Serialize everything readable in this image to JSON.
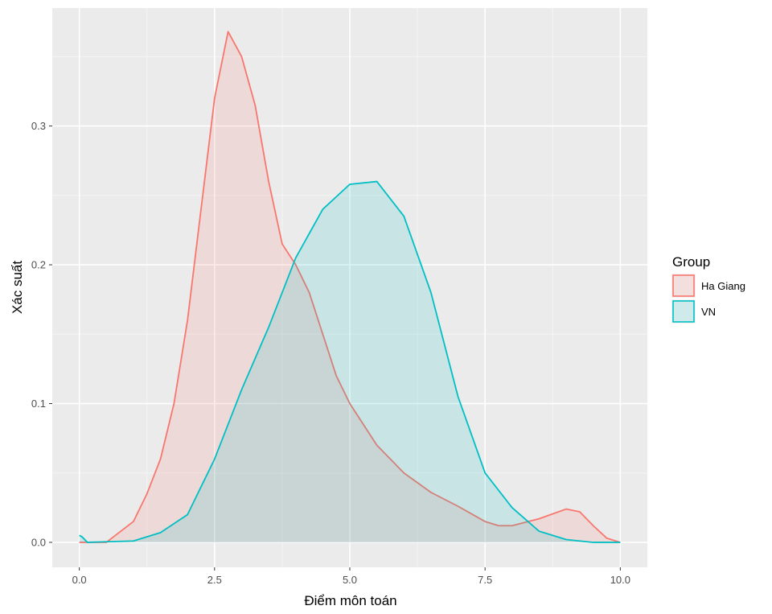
{
  "chart_data": {
    "type": "area",
    "xlabel": "Điểm môn toán",
    "ylabel": "Xác suất",
    "xlim": [
      -0.5,
      10.5
    ],
    "ylim": [
      -0.018,
      0.385
    ],
    "x_ticks": [
      0.0,
      2.5,
      5.0,
      7.5,
      10.0
    ],
    "x_tick_labels": [
      "0.0",
      "2.5",
      "5.0",
      "7.5",
      "10.0"
    ],
    "y_ticks": [
      0.0,
      0.1,
      0.2,
      0.3
    ],
    "y_tick_labels": [
      "0.0",
      "0.1",
      "0.2",
      "0.3"
    ],
    "grid": true,
    "legend": {
      "title": "Group",
      "position": "right"
    },
    "series": [
      {
        "name": "Ha Giang",
        "color": "#F8766D",
        "points": [
          [
            0.0,
            0.0
          ],
          [
            0.5,
            0.0
          ],
          [
            1.0,
            0.015
          ],
          [
            1.25,
            0.035
          ],
          [
            1.5,
            0.06
          ],
          [
            1.75,
            0.1
          ],
          [
            2.0,
            0.16
          ],
          [
            2.25,
            0.24
          ],
          [
            2.5,
            0.32
          ],
          [
            2.75,
            0.368
          ],
          [
            3.0,
            0.35
          ],
          [
            3.25,
            0.315
          ],
          [
            3.5,
            0.26
          ],
          [
            3.75,
            0.215
          ],
          [
            4.0,
            0.2
          ],
          [
            4.25,
            0.18
          ],
          [
            4.5,
            0.15
          ],
          [
            4.75,
            0.12
          ],
          [
            5.0,
            0.1
          ],
          [
            5.5,
            0.07
          ],
          [
            6.0,
            0.05
          ],
          [
            6.5,
            0.036
          ],
          [
            7.0,
            0.026
          ],
          [
            7.5,
            0.015
          ],
          [
            7.75,
            0.012
          ],
          [
            8.0,
            0.012
          ],
          [
            8.5,
            0.017
          ],
          [
            9.0,
            0.024
          ],
          [
            9.25,
            0.022
          ],
          [
            9.5,
            0.012
          ],
          [
            9.75,
            0.003
          ],
          [
            10.0,
            0.0
          ]
        ]
      },
      {
        "name": "VN",
        "color": "#00BFC4",
        "points": [
          [
            0.0,
            0.005
          ],
          [
            0.05,
            0.004
          ],
          [
            0.15,
            0.0
          ],
          [
            1.0,
            0.001
          ],
          [
            1.5,
            0.007
          ],
          [
            2.0,
            0.02
          ],
          [
            2.5,
            0.06
          ],
          [
            3.0,
            0.11
          ],
          [
            3.5,
            0.155
          ],
          [
            4.0,
            0.205
          ],
          [
            4.5,
            0.24
          ],
          [
            5.0,
            0.258
          ],
          [
            5.5,
            0.26
          ],
          [
            6.0,
            0.235
          ],
          [
            6.5,
            0.18
          ],
          [
            7.0,
            0.105
          ],
          [
            7.5,
            0.05
          ],
          [
            8.0,
            0.025
          ],
          [
            8.5,
            0.008
          ],
          [
            9.0,
            0.002
          ],
          [
            9.5,
            0.0
          ],
          [
            10.0,
            0.0
          ]
        ]
      }
    ]
  }
}
